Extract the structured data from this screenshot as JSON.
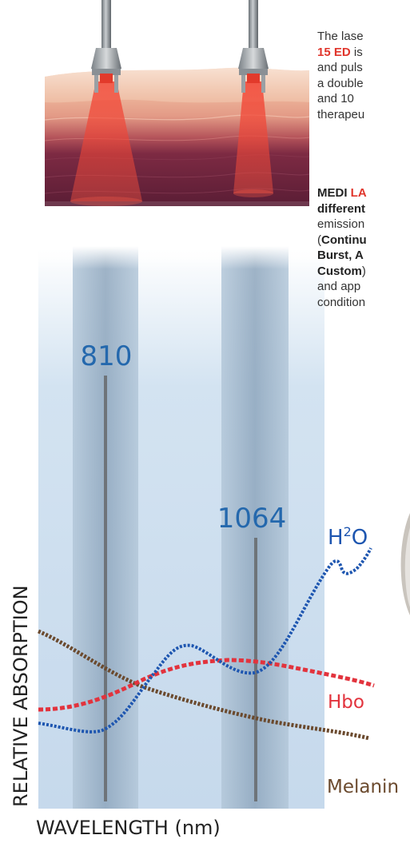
{
  "intro_lines": [
    {
      "plain": "The lase",
      "highlight": ""
    },
    {
      "plain": "",
      "highlight": "15 ED",
      "after": " is"
    },
    {
      "plain": "and puls",
      "highlight": ""
    },
    {
      "plain": "a double",
      "highlight": ""
    },
    {
      "plain": "and  10",
      "highlight": ""
    },
    {
      "plain": "therapeu",
      "highlight": ""
    }
  ],
  "modes_lines": [
    {
      "bold": "MEDI ",
      "red": "LA",
      "rest": ""
    },
    {
      "bold": "different",
      "red": "",
      "rest": ""
    },
    {
      "bold": "",
      "red": "",
      "rest": "emission"
    },
    {
      "bold": "Continu",
      "red": "",
      "rest": "(",
      "order": "paren-first"
    },
    {
      "bold": "Burst,  A",
      "red": "",
      "rest": ""
    },
    {
      "bold": "Custom",
      "red": "",
      "rest": ")",
      "order": "bold-first"
    },
    {
      "bold": "",
      "red": "",
      "rest": "and  app"
    },
    {
      "bold": "",
      "red": "",
      "rest": "condition"
    }
  ],
  "diagram": {
    "wavelength_810": "810",
    "wavelength_1064": "1064",
    "h2o_label_base": "H",
    "h2o_label_sup": "2",
    "h2o_label_end": "O",
    "hbo_label": "Hbo",
    "melanin_label": "Melanin",
    "y_axis_label": "RELATIVE ABSORPTION",
    "x_axis_label": "WAVELENGTH (nm)"
  },
  "colors": {
    "water_curve": "#1e56b0",
    "hbo_curve": "#e2333d",
    "melanin_curve": "#6b4a2e",
    "wavelength_text": "#2468ad",
    "laser_beam": "#f0442f"
  }
}
